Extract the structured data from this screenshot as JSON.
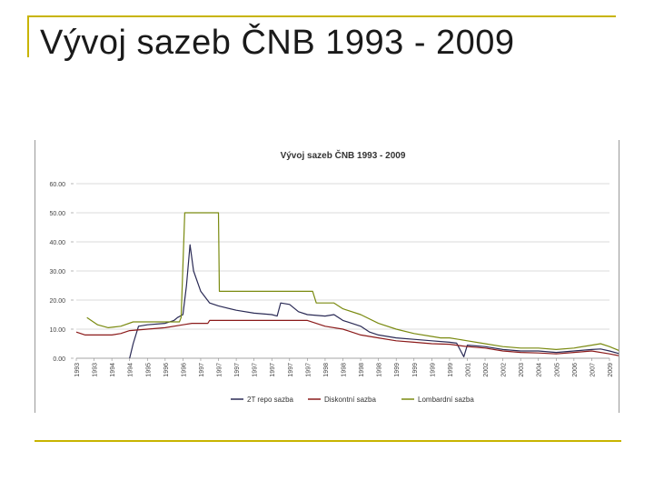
{
  "slide": {
    "title": "Vývoj sazeb ČNB 1993 - 2009",
    "accent_color": "#c8b400"
  },
  "chart_data": {
    "type": "line",
    "title": "Vývoj sazeb ČNB 1993 - 2009",
    "xlabel": "",
    "ylabel": "",
    "ylim": [
      0,
      60
    ],
    "yticks": [
      "0.00",
      "10.00",
      "20.00",
      "30.00",
      "40.00",
      "50.00",
      "60.00"
    ],
    "x_tick_labels": [
      "1993",
      "1993",
      "1994",
      "1994",
      "1995",
      "1996",
      "1996",
      "1997",
      "1997",
      "1997",
      "1997",
      "1997",
      "1997",
      "1997",
      "1998",
      "1998",
      "1998",
      "1998",
      "1999",
      "1999",
      "1999",
      "1999",
      "2001",
      "2002",
      "2002",
      "2003",
      "2004",
      "2005",
      "2006",
      "2007",
      "2009"
    ],
    "grid": true,
    "legend_position": "bottom",
    "x": [
      0,
      1,
      2,
      3,
      4,
      5,
      6,
      7,
      8,
      9,
      10,
      11,
      12,
      13,
      14,
      15,
      16,
      17,
      18,
      19,
      20,
      21,
      22,
      23,
      24,
      25,
      26,
      27,
      28,
      29,
      30
    ],
    "series": [
      {
        "name": "2T repo sazba",
        "color": "#2a2a55",
        "points": [
          [
            3.0,
            0
          ],
          [
            3.2,
            5
          ],
          [
            3.5,
            11
          ],
          [
            4,
            11.5
          ],
          [
            5,
            12
          ],
          [
            5.5,
            13
          ],
          [
            5.7,
            14
          ],
          [
            6,
            15
          ],
          [
            6.2,
            25
          ],
          [
            6.4,
            39
          ],
          [
            6.6,
            30
          ],
          [
            7,
            23
          ],
          [
            7.5,
            19
          ],
          [
            8,
            18
          ],
          [
            9,
            16.5
          ],
          [
            10,
            15.5
          ],
          [
            11,
            15
          ],
          [
            11.3,
            14.5
          ],
          [
            11.5,
            19
          ],
          [
            12,
            18.5
          ],
          [
            12.5,
            16
          ],
          [
            13,
            15
          ],
          [
            14,
            14.5
          ],
          [
            14.5,
            15
          ],
          [
            15,
            13
          ],
          [
            15.5,
            12
          ],
          [
            16,
            11
          ],
          [
            16.5,
            9
          ],
          [
            17,
            8
          ],
          [
            18,
            7
          ],
          [
            19,
            6.5
          ],
          [
            20,
            6
          ],
          [
            21,
            5.5
          ],
          [
            21.4,
            5.2
          ],
          [
            21.8,
            0.5
          ],
          [
            22,
            4.5
          ],
          [
            23,
            4
          ],
          [
            24,
            3
          ],
          [
            25,
            2.5
          ],
          [
            26,
            2.5
          ],
          [
            27,
            2
          ],
          [
            28,
            2.5
          ],
          [
            29,
            3
          ],
          [
            29.5,
            3.2
          ],
          [
            30,
            2.5
          ],
          [
            30.6,
            1.5
          ]
        ]
      },
      {
        "name": "Diskontní sazba",
        "color": "#8b1a1a",
        "points": [
          [
            0,
            9
          ],
          [
            0.5,
            8
          ],
          [
            1.5,
            8
          ],
          [
            2,
            8
          ],
          [
            2.5,
            8.5
          ],
          [
            3,
            9.5
          ],
          [
            4,
            10
          ],
          [
            5,
            10.5
          ],
          [
            6,
            11.5
          ],
          [
            6.5,
            12
          ],
          [
            7.4,
            12
          ],
          [
            7.5,
            13
          ],
          [
            11,
            13
          ],
          [
            11.5,
            13
          ],
          [
            13,
            13
          ],
          [
            14,
            11
          ],
          [
            15,
            10
          ],
          [
            16,
            8
          ],
          [
            17,
            7
          ],
          [
            18,
            6
          ],
          [
            19,
            5.5
          ],
          [
            20,
            5
          ],
          [
            21,
            4.8
          ],
          [
            22,
            4
          ],
          [
            23,
            3.5
          ],
          [
            24,
            2.5
          ],
          [
            25,
            2
          ],
          [
            26,
            1.8
          ],
          [
            27,
            1.5
          ],
          [
            28,
            2
          ],
          [
            29,
            2.5
          ],
          [
            30,
            1.5
          ],
          [
            30.6,
            0.8
          ]
        ]
      },
      {
        "name": "Lombardní sazba",
        "color": "#7a8a10",
        "points": [
          [
            0.6,
            14
          ],
          [
            1.2,
            11.5
          ],
          [
            1.8,
            10.5
          ],
          [
            2.5,
            11
          ],
          [
            3.2,
            12.5
          ],
          [
            5,
            12.5
          ],
          [
            5.8,
            12.5
          ],
          [
            5.9,
            14
          ],
          [
            6.1,
            50
          ],
          [
            8,
            50
          ],
          [
            8.05,
            23
          ],
          [
            12,
            23
          ],
          [
            13.3,
            23
          ],
          [
            13.5,
            19
          ],
          [
            14.5,
            19
          ],
          [
            15,
            17
          ],
          [
            16,
            15
          ],
          [
            17,
            12
          ],
          [
            18,
            10
          ],
          [
            19,
            8.5
          ],
          [
            20,
            7.5
          ],
          [
            20.5,
            7
          ],
          [
            21,
            7
          ],
          [
            21.5,
            6.5
          ],
          [
            22,
            6
          ],
          [
            23,
            5
          ],
          [
            24,
            4
          ],
          [
            25,
            3.5
          ],
          [
            26,
            3.5
          ],
          [
            27,
            3
          ],
          [
            28,
            3.5
          ],
          [
            29,
            4.5
          ],
          [
            29.5,
            5
          ],
          [
            30,
            4
          ],
          [
            30.6,
            2.5
          ]
        ]
      }
    ]
  }
}
